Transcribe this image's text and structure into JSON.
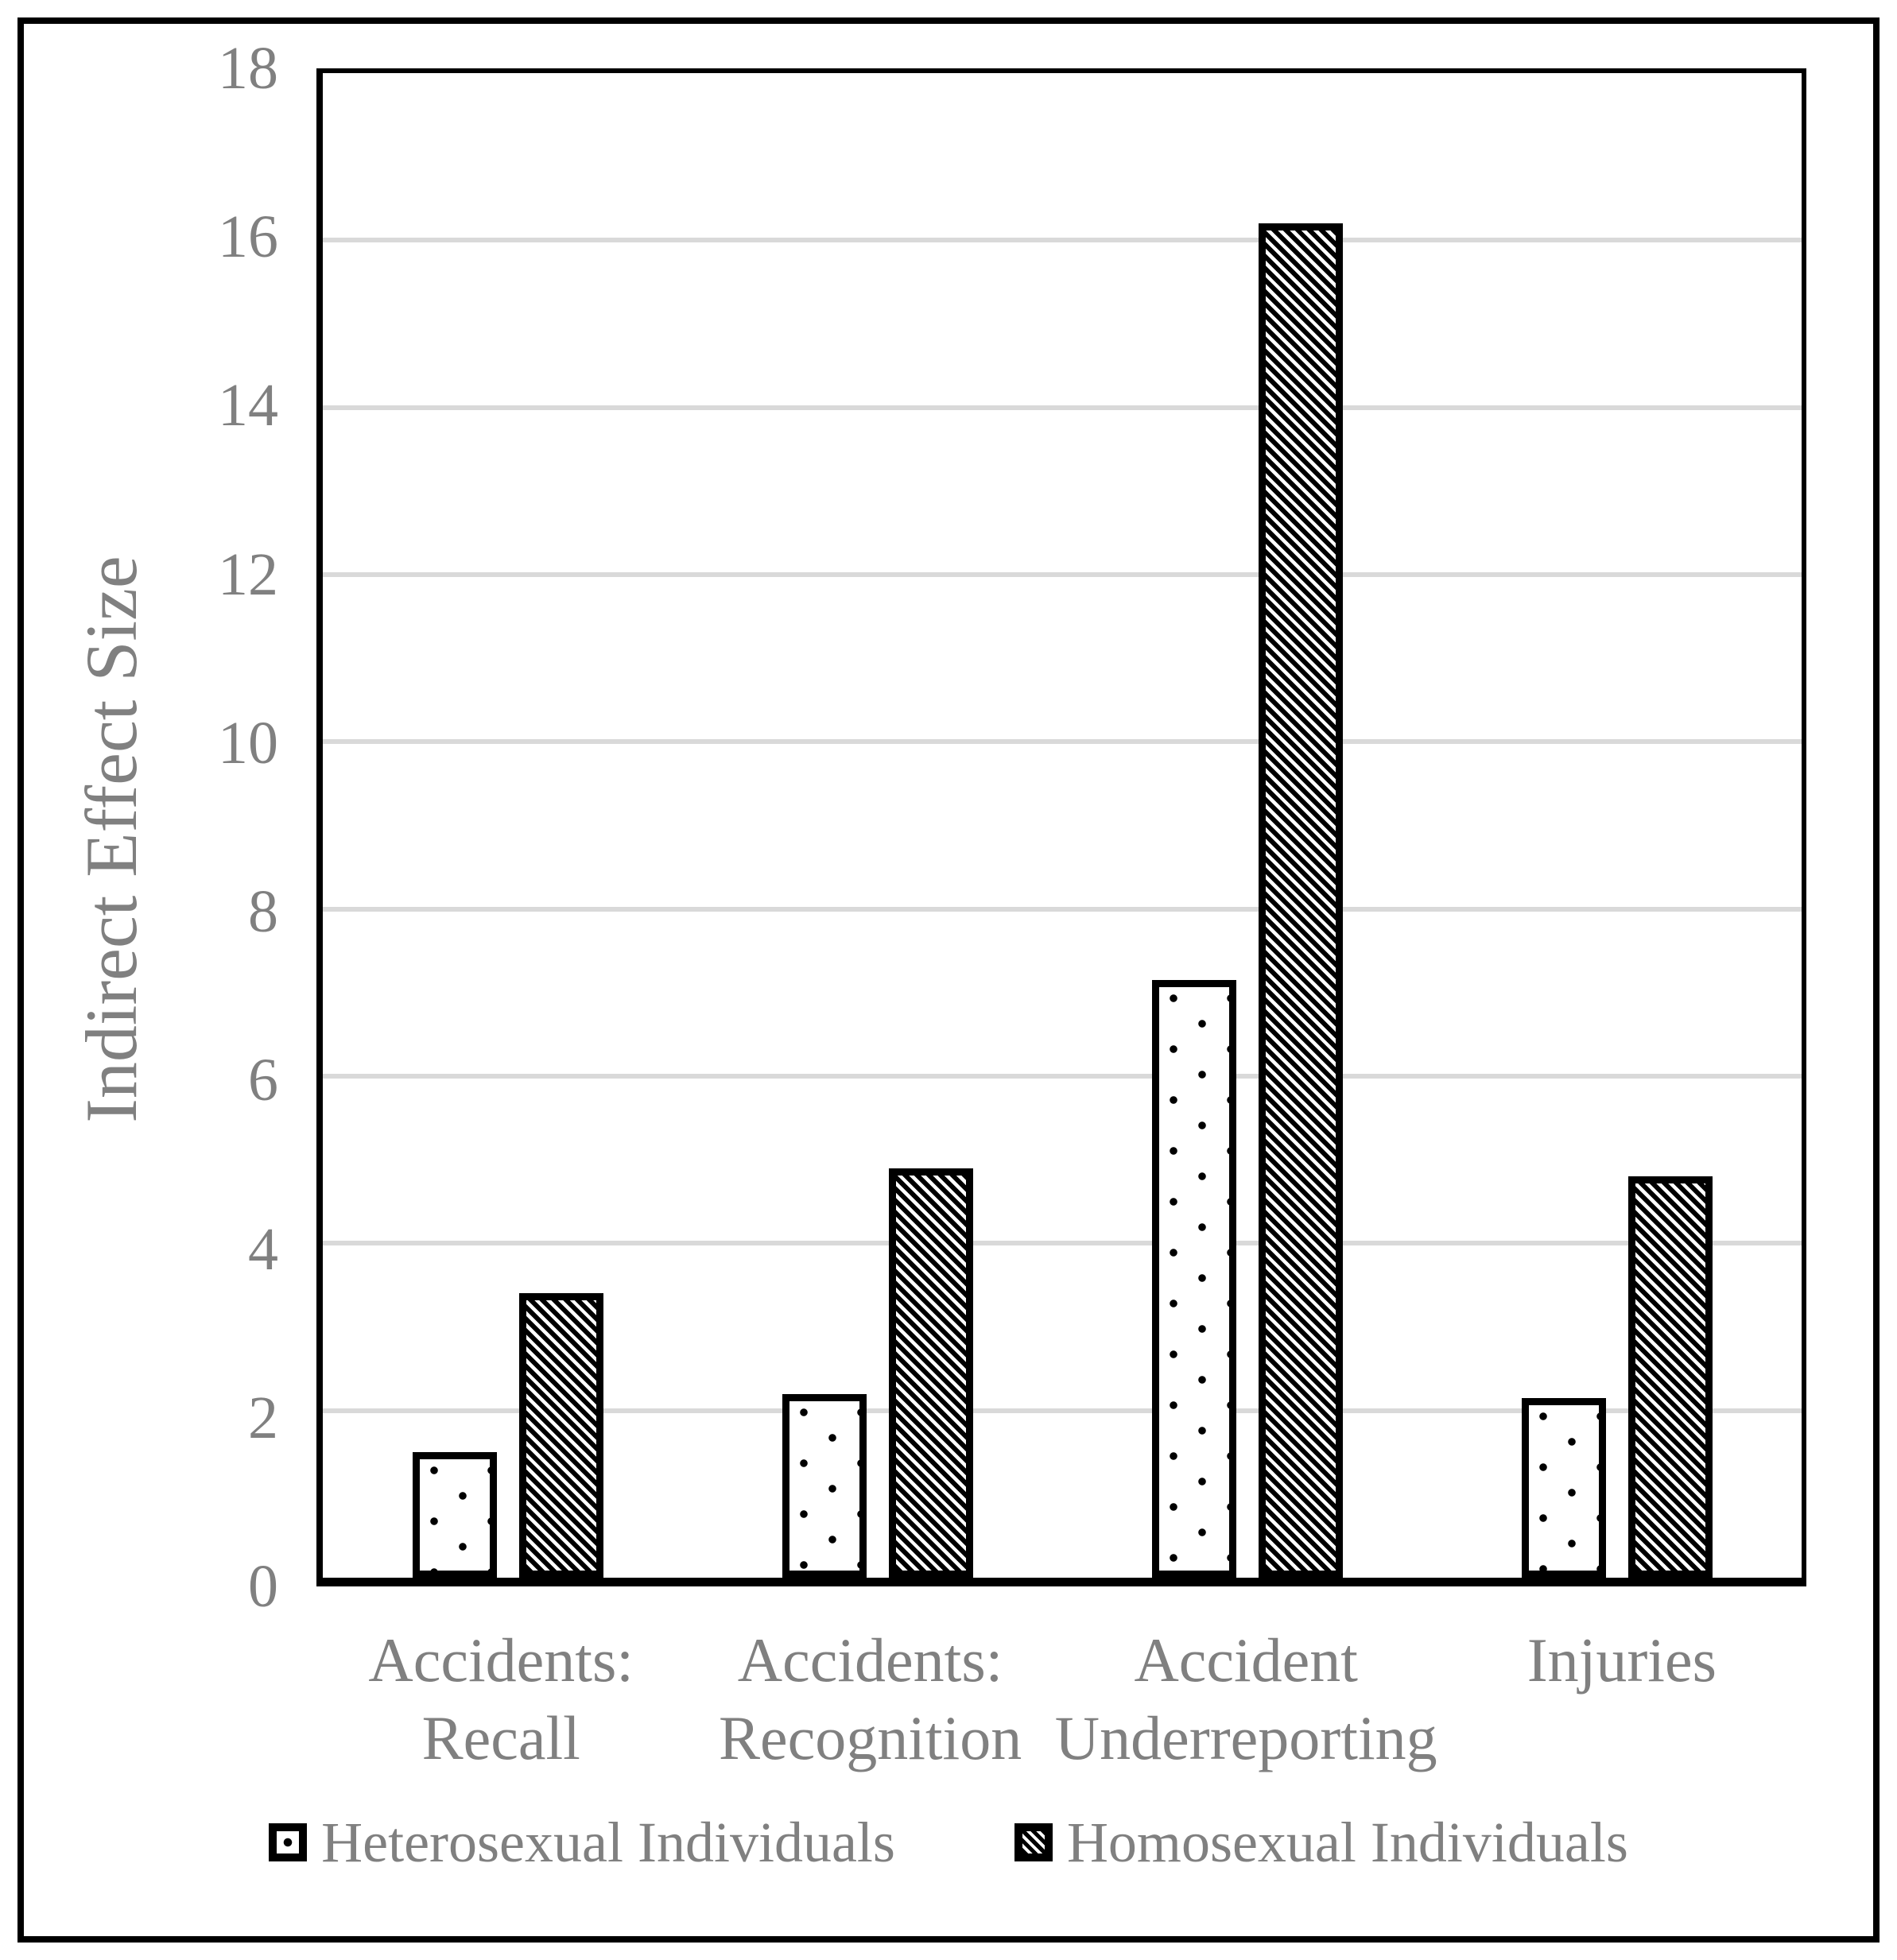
{
  "chart_data": {
    "type": "bar",
    "title": "",
    "xlabel": "",
    "ylabel": "Indirect Effect Size",
    "categories": [
      "Accidents:\nRecall",
      "Accidents:\nRecognition",
      "Accident\nUnderreporting",
      "Injuries"
    ],
    "series": [
      {
        "name": "Heterosexual Individuals",
        "pattern": "dots",
        "values": [
          1.5,
          2.2,
          7.15,
          2.15
        ]
      },
      {
        "name": "Homosexual Individuals",
        "pattern": "diagonal-stripes",
        "values": [
          3.4,
          4.9,
          16.2,
          4.8
        ]
      }
    ],
    "ylim": [
      0,
      18
    ],
    "ytick_step": 2,
    "yticks": [
      0,
      2,
      4,
      6,
      8,
      10,
      12,
      14,
      16,
      18
    ],
    "grid": true,
    "legend_position": "bottom",
    "colors": {
      "text": "#808080",
      "gridline": "#d9d9d9",
      "bar_outline": "#000000",
      "frame": "#000000",
      "background": "#ffffff"
    }
  }
}
